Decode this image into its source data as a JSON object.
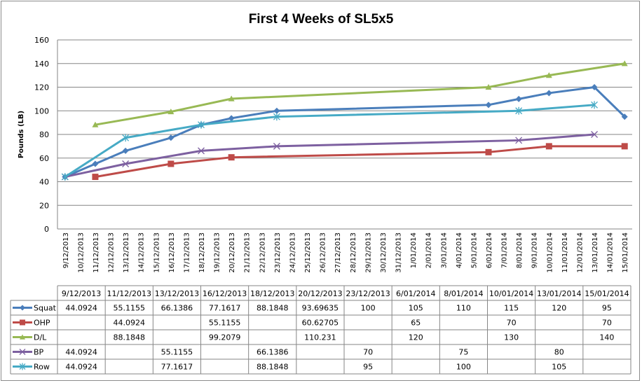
{
  "chart_data": {
    "type": "line",
    "title": "First 4 Weeks of SL5x5",
    "xlabel": "",
    "ylabel": "Pounds (LB)",
    "ylim": [
      0,
      160
    ],
    "yticks": [
      0,
      20,
      40,
      60,
      80,
      100,
      120,
      140,
      160
    ],
    "grid": true,
    "legend": "data-table",
    "axis_dates": [
      "9/12/2013",
      "10/12/2013",
      "11/12/2013",
      "12/12/2013",
      "13/12/2013",
      "14/12/2013",
      "15/12/2013",
      "16/12/2013",
      "17/12/2013",
      "18/12/2013",
      "19/12/2013",
      "20/12/2013",
      "21/12/2013",
      "22/12/2013",
      "23/12/2013",
      "24/12/2013",
      "25/12/2013",
      "26/12/2013",
      "27/12/2013",
      "28/12/2013",
      "29/12/2013",
      "30/12/2013",
      "31/12/2013",
      "1/01/2014",
      "2/01/2014",
      "3/01/2014",
      "4/01/2014",
      "5/01/2014",
      "6/01/2014",
      "7/01/2014",
      "8/01/2014",
      "9/01/2014",
      "10/01/2014",
      "11/01/2014",
      "12/01/2014",
      "13/01/2014",
      "14/01/2014",
      "15/01/2014"
    ],
    "categories": [
      "9/12/2013",
      "11/12/2013",
      "13/12/2013",
      "16/12/2013",
      "18/12/2013",
      "20/12/2013",
      "23/12/2013",
      "6/01/2014",
      "8/01/2014",
      "10/01/2014",
      "13/01/2014",
      "15/01/2014"
    ],
    "series": [
      {
        "name": "Squat",
        "color": "#4A7EBB",
        "marker": "diamond",
        "values": [
          "44.0924",
          "55.1155",
          "66.1386",
          "77.1617",
          "88.1848",
          "93.69635",
          "100",
          "105",
          "110",
          "115",
          "120",
          "95"
        ]
      },
      {
        "name": "OHP",
        "color": "#BE4B48",
        "marker": "square",
        "values": [
          null,
          "44.0924",
          null,
          "55.1155",
          null,
          "60.62705",
          null,
          "65",
          null,
          "70",
          null,
          "70"
        ]
      },
      {
        "name": "D/L",
        "color": "#98B954",
        "marker": "triangle",
        "values": [
          null,
          "88.1848",
          null,
          "99.2079",
          null,
          "110.231",
          null,
          "120",
          null,
          "130",
          null,
          "140"
        ]
      },
      {
        "name": "BP",
        "color": "#7D60A0",
        "marker": "x",
        "values": [
          "44.0924",
          null,
          "55.1155",
          null,
          "66.1386",
          null,
          "70",
          null,
          "75",
          null,
          "80",
          null
        ]
      },
      {
        "name": "Row",
        "color": "#46AAC5",
        "marker": "star",
        "values": [
          "44.0924",
          null,
          "77.1617",
          null,
          "88.1848",
          null,
          "95",
          null,
          "100",
          null,
          "105",
          null
        ]
      }
    ]
  }
}
